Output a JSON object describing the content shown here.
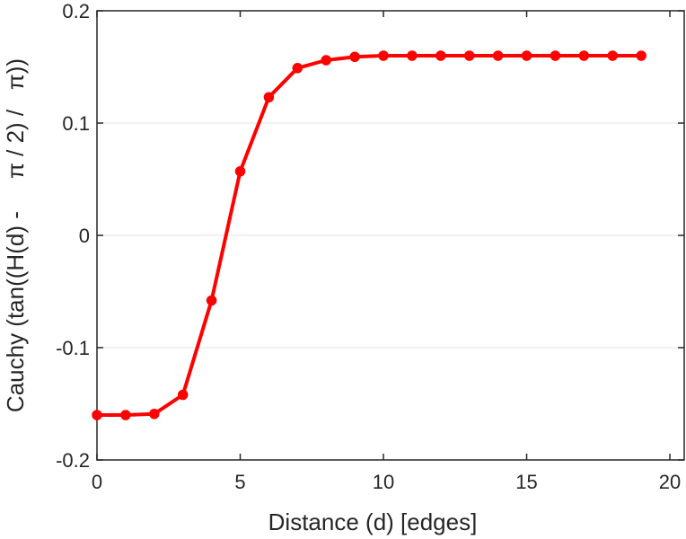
{
  "chart_data": {
    "type": "line",
    "title": "",
    "xlabel": "Distance (d) [edges]",
    "ylabel": "Cauchy (tan((H(d) -     π / 2) /   π))",
    "xlim": [
      0,
      20.5
    ],
    "ylim": [
      -0.2,
      0.2
    ],
    "xticks": [
      0,
      5,
      10,
      15,
      20
    ],
    "xtick_labels": [
      "0",
      "5",
      "10",
      "15",
      "20"
    ],
    "yticks": [
      -0.2,
      -0.1,
      0,
      0.1,
      0.2
    ],
    "ytick_labels": [
      "-0.2",
      "-0.1",
      "0",
      "0.1",
      "0.2"
    ],
    "grid": "horizontal",
    "series": [
      {
        "color": "#ff0000",
        "marker": "circle",
        "x": [
          0,
          1,
          2,
          3,
          4,
          5,
          6,
          7,
          8,
          9,
          10,
          11,
          12,
          13,
          14,
          15,
          16,
          17,
          18,
          19
        ],
        "y": [
          -0.16,
          -0.16,
          -0.159,
          -0.142,
          -0.058,
          0.057,
          0.123,
          0.149,
          0.156,
          0.159,
          0.16,
          0.16,
          0.16,
          0.16,
          0.16,
          0.16,
          0.16,
          0.16,
          0.16,
          0.16
        ]
      }
    ]
  }
}
